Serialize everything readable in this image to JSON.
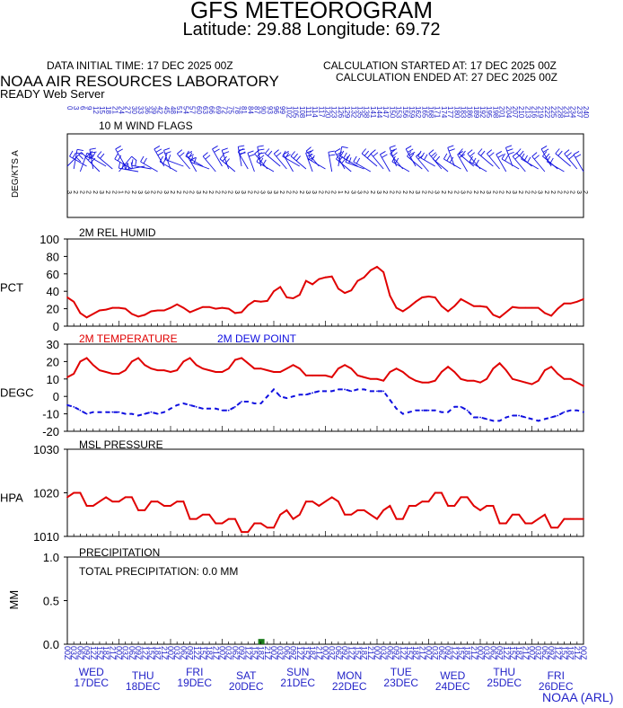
{
  "header": {
    "title": "GFS METEOROGRAM",
    "subtitle": "Latitude: 29.88 Longitude:  69.72",
    "data_initial_time": "DATA INITIAL TIME: 17 DEC 2025 00Z",
    "calc_started": "CALCULATION STARTED AT: 17 DEC 2025 00Z",
    "calc_ended": "CALCULATION ENDED AT: 27 DEC 2025 00Z",
    "organization": "NOAA AIR RESOURCES LABORATORY",
    "server": "READY Web Server"
  },
  "footer": "NOAA (ARL)",
  "colors": {
    "red": "#e00000",
    "blue": "#1010e0",
    "axis_text": "#2323c8",
    "precip_bar": "#1a7a1a"
  },
  "chart_data": [
    {
      "type": "wind-flags",
      "title": "10 M  WIND FLAGS",
      "ylabel": "DEG/KTS  A",
      "times": [
        0,
        3,
        6,
        9,
        12,
        15,
        18,
        21,
        24,
        27,
        30,
        33,
        36,
        39,
        42,
        45,
        48,
        51,
        54,
        57,
        60,
        63,
        66,
        69,
        72,
        75,
        78,
        81,
        84,
        87,
        90,
        93,
        96,
        99,
        102,
        105,
        108,
        111,
        114,
        117,
        120,
        123,
        126,
        129,
        132,
        135,
        138,
        141,
        144,
        147,
        150,
        153,
        156,
        159,
        162,
        165,
        168,
        171,
        174,
        177,
        180,
        183,
        186,
        189,
        192,
        195,
        198,
        201,
        204,
        207,
        210,
        213,
        216,
        219,
        222,
        225,
        228,
        231,
        234,
        237,
        240
      ],
      "direction": [
        45,
        10,
        20,
        300,
        350,
        315,
        300,
        310,
        40,
        330,
        300,
        280,
        260,
        280,
        300,
        330,
        340,
        300,
        290,
        320,
        330,
        300,
        290,
        320,
        330,
        340,
        310,
        350,
        330,
        340,
        350,
        320,
        300,
        310,
        320,
        330,
        300,
        310,
        340,
        320,
        300,
        350,
        10,
        330,
        310,
        300,
        290,
        300,
        310,
        320,
        330,
        340,
        320,
        300,
        330,
        310,
        320,
        300,
        320,
        310,
        340,
        300,
        330,
        310,
        320,
        300,
        310,
        320,
        330,
        340,
        300,
        320,
        310,
        300,
        320,
        330,
        310,
        300,
        310,
        320,
        330
      ],
      "speed": [
        3,
        2,
        2,
        2,
        2,
        3,
        2,
        2,
        1,
        2,
        2,
        3,
        3,
        2,
        2,
        3,
        2,
        2,
        2,
        2,
        3,
        2,
        2,
        2,
        2,
        2,
        3,
        3,
        2,
        2,
        3,
        3,
        3,
        2,
        2,
        2,
        2,
        3,
        3,
        2,
        2,
        2,
        1,
        2,
        3,
        3,
        2,
        2,
        3,
        2,
        2,
        2,
        2,
        2,
        3,
        2,
        2,
        3,
        2,
        2,
        2,
        3,
        2,
        2,
        2,
        3,
        2,
        2,
        2,
        3,
        2,
        2,
        2,
        3,
        2,
        2,
        2,
        2,
        2,
        3,
        2
      ]
    },
    {
      "type": "line",
      "title": "2M REL HUMID",
      "ylabel": "PCT",
      "ylim": [
        0,
        100
      ],
      "yticks": [
        0,
        20,
        40,
        60,
        80,
        100
      ],
      "x": [
        0,
        3,
        6,
        9,
        12,
        15,
        18,
        21,
        24,
        27,
        30,
        33,
        36,
        39,
        42,
        45,
        48,
        51,
        54,
        57,
        60,
        63,
        66,
        69,
        72,
        75,
        78,
        81,
        84,
        87,
        90,
        93,
        96,
        99,
        102,
        105,
        108,
        111,
        114,
        117,
        120,
        123,
        126,
        129,
        132,
        135,
        138,
        141,
        144,
        147,
        150,
        153,
        156,
        159,
        162,
        165,
        168,
        171,
        174,
        177,
        180,
        183,
        186,
        189,
        192,
        195,
        198,
        201,
        204,
        207,
        210,
        213,
        216,
        219,
        222,
        225,
        228,
        231,
        234,
        237,
        240
      ],
      "series": [
        {
          "name": "",
          "color": "#e00000",
          "values": [
            33,
            28,
            15,
            10,
            14,
            18,
            19,
            21,
            21,
            20,
            14,
            11,
            13,
            17,
            18,
            18,
            21,
            25,
            21,
            16,
            19,
            22,
            22,
            20,
            21,
            20,
            15,
            16,
            24,
            29,
            28,
            29,
            40,
            45,
            33,
            32,
            36,
            52,
            48,
            54,
            56,
            57,
            43,
            38,
            41,
            52,
            56,
            64,
            68,
            62,
            35,
            21,
            17,
            22,
            28,
            33,
            34,
            33,
            23,
            17,
            23,
            31,
            27,
            23,
            23,
            22,
            13,
            10,
            16,
            22,
            21,
            21,
            21,
            21,
            15,
            12,
            20,
            26,
            26,
            28,
            31
          ]
        }
      ]
    },
    {
      "type": "line",
      "title": "2M TEMPERATURE",
      "ylabel": "DEGC",
      "ylim": [
        -20,
        30
      ],
      "yticks": [
        -20,
        -10,
        0,
        10,
        20,
        30
      ],
      "x": [
        0,
        3,
        6,
        9,
        12,
        15,
        18,
        21,
        24,
        27,
        30,
        33,
        36,
        39,
        42,
        45,
        48,
        51,
        54,
        57,
        60,
        63,
        66,
        69,
        72,
        75,
        78,
        81,
        84,
        87,
        90,
        93,
        96,
        99,
        102,
        105,
        108,
        111,
        114,
        117,
        120,
        123,
        126,
        129,
        132,
        135,
        138,
        141,
        144,
        147,
        150,
        153,
        156,
        159,
        162,
        165,
        168,
        171,
        174,
        177,
        180,
        183,
        186,
        189,
        192,
        195,
        198,
        201,
        204,
        207,
        210,
        213,
        216,
        219,
        222,
        225,
        228,
        231,
        234,
        237,
        240
      ],
      "series": [
        {
          "name": "2M TEMPERATURE",
          "color": "#e00000",
          "values": [
            11,
            13,
            20,
            22,
            18,
            15,
            14,
            13,
            13,
            15,
            20,
            22,
            18,
            16,
            15,
            15,
            14,
            15,
            20,
            22,
            18,
            16,
            15,
            14,
            14,
            16,
            21,
            22,
            19,
            16,
            16,
            15,
            14,
            14,
            16,
            18,
            16,
            12,
            12,
            12,
            12,
            11,
            16,
            18,
            16,
            12,
            11,
            10,
            10,
            9,
            14,
            16,
            14,
            11,
            9,
            8,
            8,
            9,
            14,
            17,
            14,
            10,
            9,
            9,
            8,
            10,
            16,
            19,
            15,
            10,
            9,
            8,
            7,
            9,
            15,
            17,
            13,
            10,
            10,
            8,
            6
          ]
        },
        {
          "name": "2M  DEW POINT",
          "color": "#1010e0",
          "dashed": true,
          "values": [
            -5,
            -6,
            -8,
            -10,
            -9,
            -9,
            -9,
            -9,
            -9,
            -10,
            -10,
            -11,
            -10,
            -9,
            -10,
            -9,
            -7,
            -5,
            -4,
            -5,
            -6,
            -7,
            -7,
            -7,
            -8,
            -8,
            -6,
            -3,
            -3,
            -4,
            -4,
            0,
            4,
            0,
            -1,
            0,
            1,
            1,
            2,
            3,
            3,
            3,
            4,
            4,
            3,
            4,
            4,
            3,
            3,
            3,
            -2,
            -7,
            -10,
            -9,
            -8,
            -8,
            -8,
            -8,
            -9,
            -9,
            -6,
            -6,
            -8,
            -12,
            -12,
            -13,
            -14,
            -14,
            -12,
            -11,
            -11,
            -12,
            -13,
            -14,
            -13,
            -12,
            -11,
            -9,
            -8,
            -8,
            -9
          ]
        }
      ]
    },
    {
      "type": "line",
      "title": "MSL PRESSURE",
      "ylabel": "HPA",
      "ylim": [
        1010,
        1030
      ],
      "yticks": [
        1010,
        1020,
        1030
      ],
      "x": [
        0,
        3,
        6,
        9,
        12,
        15,
        18,
        21,
        24,
        27,
        30,
        33,
        36,
        39,
        42,
        45,
        48,
        51,
        54,
        57,
        60,
        63,
        66,
        69,
        72,
        75,
        78,
        81,
        84,
        87,
        90,
        93,
        96,
        99,
        102,
        105,
        108,
        111,
        114,
        117,
        120,
        123,
        126,
        129,
        132,
        135,
        138,
        141,
        144,
        147,
        150,
        153,
        156,
        159,
        162,
        165,
        168,
        171,
        174,
        177,
        180,
        183,
        186,
        189,
        192,
        195,
        198,
        201,
        204,
        207,
        210,
        213,
        216,
        219,
        222,
        225,
        228,
        231,
        234,
        237,
        240
      ],
      "series": [
        {
          "name": "",
          "color": "#e00000",
          "values": [
            1019,
            1020,
            1020,
            1017,
            1017,
            1018,
            1019,
            1018,
            1018,
            1019,
            1019,
            1016,
            1016,
            1018,
            1018,
            1017,
            1017,
            1018,
            1018,
            1014,
            1014,
            1015,
            1015,
            1013,
            1013,
            1014,
            1014,
            1011,
            1011,
            1013,
            1013,
            1012,
            1012,
            1015,
            1016,
            1014,
            1015,
            1018,
            1018,
            1017,
            1018,
            1019,
            1018,
            1015,
            1015,
            1016,
            1016,
            1015,
            1014,
            1016,
            1017,
            1014,
            1014,
            1017,
            1017,
            1018,
            1018,
            1020,
            1020,
            1017,
            1017,
            1019,
            1019,
            1017,
            1016,
            1017,
            1017,
            1013,
            1013,
            1015,
            1015,
            1013,
            1013,
            1014,
            1015,
            1012,
            1012,
            1014,
            1014,
            1014,
            1014
          ]
        }
      ]
    },
    {
      "type": "bar",
      "title": "PRECIPITATION",
      "ylabel": "MM",
      "ylim": [
        0,
        1.0
      ],
      "yticks": [
        "0.0",
        "0.5",
        "1.0"
      ],
      "annotation": "TOTAL PRECIPITATION:   0.0 MM",
      "bars": [
        {
          "x": 90,
          "value": 0.05
        }
      ]
    }
  ],
  "x_axis": {
    "hour_labels": [
      "00Z",
      "03Z",
      "06Z",
      "09Z",
      "12Z",
      "15Z",
      "18Z",
      "21Z"
    ],
    "days": [
      {
        "dow": "WED",
        "date": "17DEC"
      },
      {
        "dow": "THU",
        "date": "18DEC"
      },
      {
        "dow": "FRI",
        "date": "19DEC"
      },
      {
        "dow": "SAT",
        "date": "20DEC"
      },
      {
        "dow": "SUN",
        "date": "21DEC"
      },
      {
        "dow": "MON",
        "date": "22DEC"
      },
      {
        "dow": "TUE",
        "date": "23DEC"
      },
      {
        "dow": "WED",
        "date": "24DEC"
      },
      {
        "dow": "THU",
        "date": "25DEC"
      },
      {
        "dow": "FRI",
        "date": "26DEC"
      }
    ]
  }
}
